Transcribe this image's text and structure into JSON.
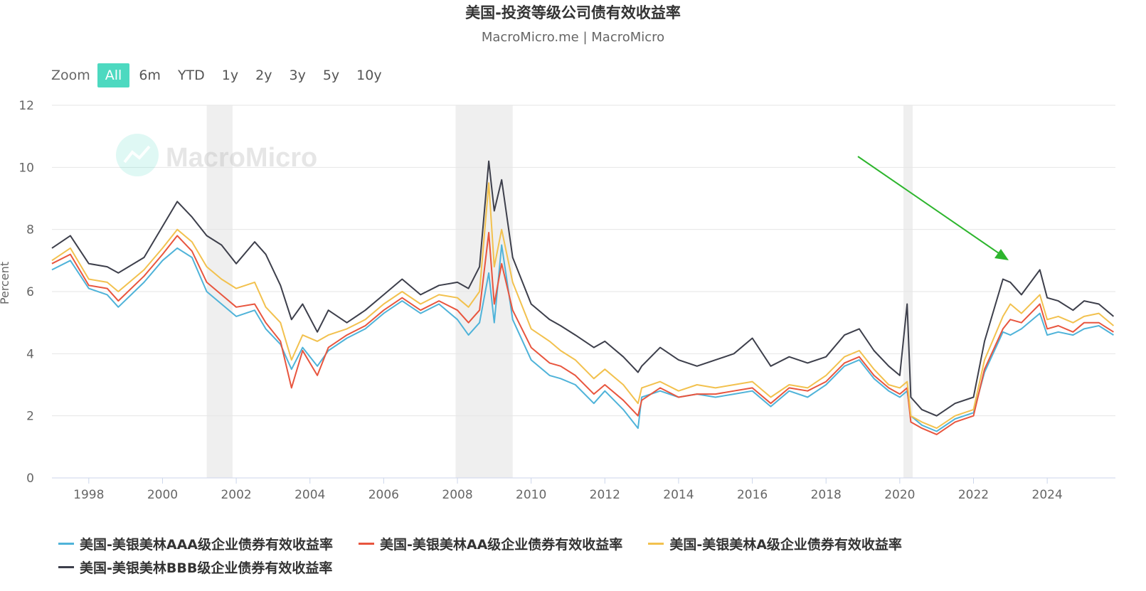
{
  "header": {
    "title": "美国-投资等级公司债有效收益率",
    "subtitle": "MacroMicro.me | MacroMicro"
  },
  "zoom": {
    "label": "Zoom",
    "buttons": [
      "All",
      "6m",
      "YTD",
      "1y",
      "2y",
      "3y",
      "5y",
      "10y"
    ],
    "active": "All"
  },
  "watermark": {
    "text": "MacroMicro"
  },
  "chart_data": {
    "type": "line",
    "title": "美国-投资等级公司债有效收益率",
    "ylabel": "Percent",
    "xlabel": "",
    "xlim": [
      1997.0,
      2025.85
    ],
    "ylim": [
      0,
      12
    ],
    "yticks": [
      0,
      2,
      4,
      6,
      8,
      10,
      12
    ],
    "xticks": [
      1998,
      2000,
      2002,
      2004,
      2006,
      2008,
      2010,
      2012,
      2014,
      2016,
      2018,
      2020,
      2022,
      2024
    ],
    "grid": true,
    "legend_position": "bottom",
    "recession_bands": [
      [
        2001.2,
        2001.9
      ],
      [
        2007.95,
        2009.5
      ],
      [
        2020.1,
        2020.35
      ]
    ],
    "series": [
      {
        "name": "美国-美银美林AAA级企业债券有效收益率",
        "color": "#4fb3d9",
        "x": [
          1997.0,
          1997.5,
          1998.0,
          1998.5,
          1998.8,
          1999.5,
          2000.0,
          2000.4,
          2000.8,
          2001.2,
          2001.6,
          2002.0,
          2002.5,
          2002.8,
          2003.2,
          2003.5,
          2003.8,
          2004.2,
          2004.5,
          2005.0,
          2005.5,
          2006.0,
          2006.5,
          2007.0,
          2007.5,
          2008.0,
          2008.3,
          2008.6,
          2008.85,
          2009.0,
          2009.2,
          2009.5,
          2010.0,
          2010.5,
          2010.8,
          2011.2,
          2011.7,
          2012.0,
          2012.5,
          2012.9,
          2013.0,
          2013.5,
          2014.0,
          2014.5,
          2015.0,
          2015.5,
          2016.0,
          2016.5,
          2017.0,
          2017.5,
          2018.0,
          2018.5,
          2018.9,
          2019.3,
          2019.7,
          2020.0,
          2020.2,
          2020.3,
          2020.6,
          2021.0,
          2021.5,
          2022.0,
          2022.3,
          2022.8,
          2023.0,
          2023.3,
          2023.8,
          2024.0,
          2024.3,
          2024.7,
          2025.0,
          2025.4,
          2025.8
        ],
        "values": [
          6.7,
          7.0,
          6.1,
          5.9,
          5.5,
          6.3,
          7.0,
          7.4,
          7.1,
          6.0,
          5.6,
          5.2,
          5.4,
          4.8,
          4.3,
          3.5,
          4.2,
          3.6,
          4.1,
          4.5,
          4.8,
          5.3,
          5.7,
          5.3,
          5.6,
          5.1,
          4.6,
          5.0,
          6.6,
          5.0,
          7.5,
          5.1,
          3.8,
          3.3,
          3.2,
          3.0,
          2.4,
          2.8,
          2.2,
          1.6,
          2.6,
          2.8,
          2.6,
          2.7,
          2.6,
          2.7,
          2.8,
          2.3,
          2.8,
          2.6,
          3.0,
          3.6,
          3.8,
          3.2,
          2.8,
          2.6,
          2.8,
          2.0,
          1.7,
          1.5,
          1.9,
          2.1,
          3.4,
          4.7,
          4.6,
          4.8,
          5.3,
          4.6,
          4.7,
          4.6,
          4.8,
          4.9,
          4.6
        ]
      },
      {
        "name": "美国-美银美林AA级企业债券有效收益率",
        "color": "#e8553e",
        "x": [
          1997.0,
          1997.5,
          1998.0,
          1998.5,
          1998.8,
          1999.5,
          2000.0,
          2000.4,
          2000.8,
          2001.2,
          2001.6,
          2002.0,
          2002.5,
          2002.8,
          2003.2,
          2003.5,
          2003.8,
          2004.2,
          2004.5,
          2005.0,
          2005.5,
          2006.0,
          2006.5,
          2007.0,
          2007.5,
          2008.0,
          2008.3,
          2008.6,
          2008.85,
          2009.0,
          2009.2,
          2009.5,
          2010.0,
          2010.5,
          2010.8,
          2011.2,
          2011.7,
          2012.0,
          2012.5,
          2012.9,
          2013.0,
          2013.5,
          2014.0,
          2014.5,
          2015.0,
          2015.5,
          2016.0,
          2016.5,
          2017.0,
          2017.5,
          2018.0,
          2018.5,
          2018.9,
          2019.3,
          2019.7,
          2020.0,
          2020.2,
          2020.3,
          2020.6,
          2021.0,
          2021.5,
          2022.0,
          2022.3,
          2022.8,
          2023.0,
          2023.3,
          2023.8,
          2024.0,
          2024.3,
          2024.7,
          2025.0,
          2025.4,
          2025.8
        ],
        "values": [
          6.9,
          7.2,
          6.2,
          6.1,
          5.7,
          6.5,
          7.2,
          7.8,
          7.3,
          6.3,
          5.9,
          5.5,
          5.6,
          5.0,
          4.4,
          2.9,
          4.1,
          3.3,
          4.2,
          4.6,
          4.9,
          5.4,
          5.8,
          5.4,
          5.7,
          5.4,
          5.0,
          5.4,
          7.9,
          5.6,
          6.9,
          5.4,
          4.2,
          3.7,
          3.6,
          3.3,
          2.7,
          3.0,
          2.5,
          2.0,
          2.5,
          2.9,
          2.6,
          2.7,
          2.7,
          2.8,
          2.9,
          2.4,
          2.9,
          2.8,
          3.1,
          3.7,
          3.9,
          3.3,
          2.9,
          2.7,
          2.9,
          1.8,
          1.6,
          1.4,
          1.8,
          2.0,
          3.5,
          4.8,
          5.1,
          5.0,
          5.6,
          4.8,
          4.9,
          4.7,
          5.0,
          5.0,
          4.7
        ]
      },
      {
        "name": "美国-美银美林A级企业债券有效收益率",
        "color": "#f2c14e",
        "x": [
          1997.0,
          1997.5,
          1998.0,
          1998.5,
          1998.8,
          1999.5,
          2000.0,
          2000.4,
          2000.8,
          2001.2,
          2001.6,
          2002.0,
          2002.5,
          2002.8,
          2003.2,
          2003.5,
          2003.8,
          2004.2,
          2004.5,
          2005.0,
          2005.5,
          2006.0,
          2006.5,
          2007.0,
          2007.5,
          2008.0,
          2008.3,
          2008.6,
          2008.85,
          2009.0,
          2009.2,
          2009.5,
          2010.0,
          2010.5,
          2010.8,
          2011.2,
          2011.7,
          2012.0,
          2012.5,
          2012.9,
          2013.0,
          2013.5,
          2014.0,
          2014.5,
          2015.0,
          2015.5,
          2016.0,
          2016.5,
          2017.0,
          2017.5,
          2018.0,
          2018.5,
          2018.9,
          2019.3,
          2019.7,
          2020.0,
          2020.2,
          2020.3,
          2020.6,
          2021.0,
          2021.5,
          2022.0,
          2022.3,
          2022.8,
          2023.0,
          2023.3,
          2023.8,
          2024.0,
          2024.3,
          2024.7,
          2025.0,
          2025.4,
          2025.8
        ],
        "values": [
          7.0,
          7.4,
          6.4,
          6.3,
          6.0,
          6.7,
          7.4,
          8.0,
          7.6,
          6.8,
          6.4,
          6.1,
          6.3,
          5.5,
          5.0,
          3.8,
          4.6,
          4.4,
          4.6,
          4.8,
          5.1,
          5.6,
          6.0,
          5.6,
          5.9,
          5.8,
          5.5,
          6.0,
          9.5,
          6.8,
          8.0,
          6.3,
          4.8,
          4.4,
          4.1,
          3.8,
          3.2,
          3.5,
          3.0,
          2.4,
          2.9,
          3.1,
          2.8,
          3.0,
          2.9,
          3.0,
          3.1,
          2.6,
          3.0,
          2.9,
          3.3,
          3.9,
          4.1,
          3.5,
          3.0,
          2.9,
          3.1,
          2.0,
          1.8,
          1.6,
          2.0,
          2.2,
          3.8,
          5.2,
          5.6,
          5.3,
          5.9,
          5.1,
          5.2,
          5.0,
          5.2,
          5.3,
          4.9
        ]
      },
      {
        "name": "美国-美银美林BBB级企业债券有效收益率",
        "color": "#3d3f4b",
        "x": [
          1997.0,
          1997.5,
          1998.0,
          1998.5,
          1998.8,
          1999.5,
          2000.0,
          2000.4,
          2000.8,
          2001.2,
          2001.6,
          2002.0,
          2002.5,
          2002.8,
          2003.2,
          2003.5,
          2003.8,
          2004.2,
          2004.5,
          2005.0,
          2005.5,
          2006.0,
          2006.5,
          2007.0,
          2007.5,
          2008.0,
          2008.3,
          2008.6,
          2008.85,
          2009.0,
          2009.2,
          2009.5,
          2010.0,
          2010.5,
          2010.8,
          2011.2,
          2011.7,
          2012.0,
          2012.5,
          2012.9,
          2013.0,
          2013.5,
          2014.0,
          2014.5,
          2015.0,
          2015.5,
          2016.0,
          2016.5,
          2017.0,
          2017.5,
          2018.0,
          2018.5,
          2018.9,
          2019.3,
          2019.7,
          2020.0,
          2020.2,
          2020.3,
          2020.6,
          2021.0,
          2021.5,
          2022.0,
          2022.3,
          2022.8,
          2023.0,
          2023.3,
          2023.8,
          2024.0,
          2024.3,
          2024.7,
          2025.0,
          2025.4,
          2025.8
        ],
        "values": [
          7.4,
          7.8,
          6.9,
          6.8,
          6.6,
          7.1,
          8.1,
          8.9,
          8.4,
          7.8,
          7.5,
          6.9,
          7.6,
          7.2,
          6.2,
          5.1,
          5.6,
          4.7,
          5.4,
          5.0,
          5.4,
          5.9,
          6.4,
          5.9,
          6.2,
          6.3,
          6.1,
          6.8,
          10.2,
          8.6,
          9.6,
          7.1,
          5.6,
          5.1,
          4.9,
          4.6,
          4.2,
          4.4,
          3.9,
          3.4,
          3.6,
          4.2,
          3.8,
          3.6,
          3.8,
          4.0,
          4.5,
          3.6,
          3.9,
          3.7,
          3.9,
          4.6,
          4.8,
          4.1,
          3.6,
          3.3,
          5.6,
          2.6,
          2.2,
          2.0,
          2.4,
          2.6,
          4.4,
          6.4,
          6.3,
          5.9,
          6.7,
          5.8,
          5.7,
          5.4,
          5.7,
          5.6,
          5.2
        ]
      }
    ]
  }
}
